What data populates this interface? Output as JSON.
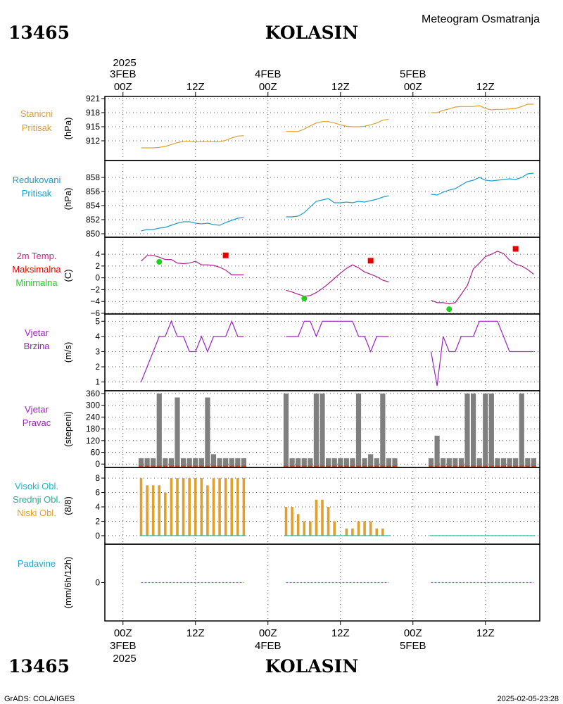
{
  "header": {
    "station_id": "13465",
    "station_name": "KOLASIN",
    "chart_title": "Meteogram Osmatranja",
    "year": "2025"
  },
  "footer": {
    "station_id": "13465",
    "station_name": "KOLASIN",
    "year": "2025",
    "credit": "GrADS: COLA/IGES",
    "timestamp": "2025-02-05-23:28"
  },
  "colors": {
    "pressure_station": "#e0a030",
    "pressure_reduced": "#1e9ec8",
    "temp": "#b0208c",
    "temp_max": "#e60000",
    "temp_min": "#1ed21e",
    "wind": "#a020c8",
    "bars": "#7f7f7f",
    "dir_base": "#c0502a",
    "cloud_low": "#e0a030",
    "cloud_mid": "#1eb496",
    "cloud_high": "#1eb4c8",
    "precip": "#1e9ec8",
    "precip_label": "#2aa0c8",
    "clouds_label_high": "#1eb4c8",
    "clouds_label_mid": "#1eb496",
    "clouds_label_low": "#e0a030",
    "dir_label": "#a020c8",
    "wind_label": "#a020c8",
    "temp_label": "#c82888",
    "maxlabel": "#e60000",
    "minlabel": "#1ed21e"
  },
  "chart_data": {
    "type": "line",
    "time_axis": {
      "top_days": [
        "3FEB",
        "4FEB",
        "5FEB"
      ],
      "top_hours": [
        "00Z",
        "12Z",
        "00Z",
        "12Z",
        "00Z",
        "12Z"
      ],
      "bottom_hours": [
        "00Z",
        "12Z",
        "00Z",
        "12Z",
        "00Z",
        "12Z"
      ],
      "bottom_days": [
        "3FEB",
        "4FEB",
        "5FEB"
      ],
      "range_hours": [
        -3,
        69
      ]
    },
    "panels": [
      {
        "id": "station_pressure",
        "labels": [
          "Stanicni",
          "Pritisak"
        ],
        "unit": "(hPa)",
        "ylim": [
          909,
          921
        ],
        "ticks": [
          "921",
          "918",
          "915",
          "912"
        ],
        "tick_values": [
          921,
          918,
          915,
          912
        ],
        "series": [
          {
            "hours": [
              3,
              4,
              5,
              6,
              7,
              8,
              9,
              10,
              11,
              12,
              13,
              14,
              15,
              16,
              17,
              18,
              19,
              20
            ],
            "values": [
              910.5,
              910.5,
              910.5,
              910.6,
              910.8,
              911.2,
              911.6,
              911.9,
              911.9,
              911.8,
              911.8,
              911.9,
              911.8,
              911.8,
              912.1,
              912.6,
              913.0,
              913.1
            ]
          },
          {
            "hours": [
              27,
              28,
              29,
              30,
              31,
              32,
              33,
              34,
              35,
              36,
              37,
              38,
              39,
              40,
              41,
              42,
              43,
              44
            ],
            "values": [
              914.0,
              914.0,
              914.0,
              914.5,
              915.2,
              915.8,
              916.1,
              916.1,
              915.8,
              915.4,
              915.1,
              915.0,
              915.0,
              915.1,
              915.4,
              915.8,
              916.4,
              916.6
            ]
          },
          {
            "hours": [
              51,
              52,
              53,
              54,
              55,
              56,
              57,
              58,
              59,
              60,
              61,
              62,
              63,
              64,
              65,
              66,
              67,
              68
            ],
            "values": [
              918.0,
              918.0,
              918.5,
              918.8,
              919.2,
              919.3,
              919.3,
              919.3,
              919.5,
              918.9,
              918.6,
              918.7,
              918.7,
              918.8,
              918.9,
              919.3,
              919.8,
              919.8
            ]
          }
        ]
      },
      {
        "id": "reduced_pressure",
        "labels": [
          "Redukovani",
          "Pritisak"
        ],
        "unit": "(hPa)",
        "ylim": [
          849.8,
          858.9
        ],
        "ticks": [
          "858",
          "856",
          "854",
          "852",
          "850"
        ],
        "tick_values": [
          858,
          856,
          854,
          852,
          850
        ],
        "series": [
          {
            "hours": [
              3,
              4,
              5,
              6,
              7,
              8,
              9,
              10,
              11,
              12,
              13,
              14,
              15,
              16,
              17,
              18,
              19,
              20
            ],
            "values": [
              850.4,
              850.6,
              850.6,
              850.8,
              850.9,
              851.2,
              851.5,
              851.7,
              851.7,
              851.5,
              851.4,
              851.5,
              851.3,
              851.2,
              851.6,
              851.9,
              852.2,
              852.3
            ]
          },
          {
            "hours": [
              27,
              28,
              29,
              30,
              31,
              32,
              33,
              34,
              35,
              36,
              37,
              38,
              39,
              40,
              41,
              42,
              43,
              44
            ],
            "values": [
              852.4,
              852.4,
              852.5,
              853.0,
              853.8,
              854.6,
              854.8,
              855.0,
              854.4,
              854.4,
              854.5,
              854.4,
              854.6,
              854.5,
              854.7,
              854.9,
              855.2,
              855.4
            ]
          },
          {
            "hours": [
              51,
              52,
              53,
              54,
              55,
              56,
              57,
              58,
              59,
              60,
              61,
              62,
              63,
              64,
              65,
              66,
              67,
              68
            ],
            "values": [
              855.6,
              855.5,
              855.9,
              856.2,
              856.4,
              856.9,
              857.4,
              857.6,
              858.0,
              857.6,
              857.5,
              857.6,
              857.7,
              857.8,
              857.7,
              858.0,
              858.5,
              858.6
            ]
          }
        ]
      },
      {
        "id": "temperature",
        "labels": [
          "2m Temp.",
          "Maksimalna",
          "Minimalna"
        ],
        "unit": "(C)",
        "ylim": [
          -6,
          5.2
        ],
        "ticks": [
          "4",
          "2",
          "0",
          "−2",
          "−4",
          "−6"
        ],
        "tick_values": [
          4,
          2,
          0,
          -2,
          -4,
          -6
        ],
        "series": [
          {
            "hours": [
              3,
              4,
              5,
              6,
              7,
              8,
              9,
              10,
              11,
              12,
              13,
              14,
              15,
              16,
              17,
              18,
              19,
              20
            ],
            "values": [
              2.8,
              3.8,
              3.8,
              3.5,
              3.1,
              3.1,
              2.5,
              2.4,
              2.5,
              2.8,
              2.2,
              2.2,
              2.1,
              1.8,
              1.3,
              0.5,
              0.5,
              0.5
            ]
          },
          {
            "hours": [
              27,
              28,
              29,
              30,
              31,
              32,
              33,
              34,
              35,
              36,
              37,
              38,
              39,
              40,
              41,
              42,
              43,
              44
            ],
            "values": [
              -2.1,
              -2.4,
              -2.8,
              -3.1,
              -3.0,
              -2.5,
              -1.8,
              -1.0,
              -0.1,
              0.8,
              1.6,
              2.2,
              1.7,
              1.0,
              0.6,
              0.2,
              -0.4,
              -0.7
            ]
          },
          {
            "hours": [
              51,
              52,
              53,
              54,
              55,
              56,
              57,
              58,
              59,
              60,
              61,
              62,
              63,
              64,
              65,
              66,
              67,
              68
            ],
            "values": [
              -3.8,
              -4.2,
              -4.2,
              -4.4,
              -4.2,
              -2.8,
              -1.3,
              1.5,
              2.5,
              3.6,
              4.0,
              4.5,
              4.1,
              3.0,
              2.3,
              2.0,
              1.4,
              0.6
            ]
          }
        ],
        "max_points": {
          "hours": [
            17,
            41,
            65
          ],
          "values": [
            3.8,
            2.9,
            4.9
          ]
        },
        "min_points": {
          "hours": [
            6,
            30,
            54
          ],
          "values": [
            2.7,
            -3.5,
            -5.3
          ]
        }
      },
      {
        "id": "wind_speed",
        "labels": [
          "Vjetar",
          "Brzina"
        ],
        "unit": "(m/s)",
        "ylim": [
          0.75,
          5.2
        ],
        "ticks": [
          "5",
          "4",
          "3",
          "2",
          "1"
        ],
        "tick_values": [
          5,
          4,
          3,
          2,
          1
        ],
        "series": [
          {
            "hours": [
              3,
              4,
              5,
              6,
              7,
              8,
              9,
              10,
              11,
              12,
              13,
              14,
              15,
              16,
              17,
              18,
              19,
              20
            ],
            "values": [
              1,
              2,
              3,
              4,
              4,
              5,
              4,
              4,
              3,
              3,
              4,
              3,
              4,
              4,
              4,
              5,
              4,
              4
            ]
          },
          {
            "hours": [
              27,
              28,
              29,
              30,
              31,
              32,
              33,
              34,
              35,
              36,
              37,
              38,
              39,
              40,
              41,
              42,
              43,
              44
            ],
            "values": [
              4,
              4,
              4,
              5,
              5,
              4,
              5,
              5,
              5,
              5,
              5,
              5,
              4,
              4,
              3,
              4,
              4,
              4
            ]
          },
          {
            "hours": [
              51,
              52,
              53,
              54,
              55,
              56,
              57,
              58,
              59,
              60,
              61,
              62,
              63,
              64,
              65,
              66,
              67,
              68
            ],
            "values": [
              3,
              0.75,
              4,
              3,
              3,
              4,
              4,
              4,
              5,
              5,
              5,
              5,
              4,
              3,
              3,
              3,
              3,
              3
            ]
          }
        ]
      },
      {
        "id": "wind_direction",
        "labels": [
          "Vjetar",
          "Pravac"
        ],
        "unit": "(stepeni)",
        "ylim": [
          -10,
          360
        ],
        "ticks": [
          "360",
          "300",
          "240",
          "180",
          "120",
          "60",
          "0"
        ],
        "tick_values": [
          360,
          300,
          240,
          180,
          120,
          60,
          0
        ],
        "series": [
          {
            "hours": [
              3,
              4,
              5,
              6,
              7,
              8,
              9,
              10,
              11,
              12,
              13,
              14,
              15,
              16,
              17,
              18,
              19,
              20
            ],
            "values": [
              30,
              30,
              30,
              360,
              30,
              30,
              340,
              30,
              30,
              30,
              30,
              340,
              50,
              30,
              30,
              30,
              30,
              30
            ]
          },
          {
            "hours": [
              27,
              28,
              29,
              30,
              31,
              32,
              33,
              34,
              35,
              36,
              37,
              38,
              39,
              40,
              41,
              42,
              43,
              44,
              45
            ],
            "values": [
              360,
              30,
              30,
              30,
              30,
              360,
              360,
              30,
              30,
              30,
              30,
              30,
              360,
              30,
              50,
              30,
              360,
              30,
              30
            ]
          },
          {
            "hours": [
              51,
              52,
              53,
              54,
              55,
              56,
              57,
              58,
              59,
              60,
              61,
              62,
              63,
              64,
              65,
              66,
              67,
              68
            ],
            "values": [
              30,
              145,
              30,
              30,
              30,
              30,
              360,
              360,
              30,
              360,
              360,
              30,
              30,
              30,
              30,
              360,
              30,
              30
            ]
          }
        ]
      },
      {
        "id": "clouds",
        "labels": [
          "Visoki Obl.",
          "Srednji Obl.",
          "Niski Obl."
        ],
        "unit": "(8/8)",
        "ylim": [
          -0.3,
          8.4
        ],
        "ticks": [
          "8",
          "6",
          "4",
          "2",
          "0"
        ],
        "tick_values": [
          8,
          6,
          4,
          2,
          0
        ],
        "series": [
          {
            "hours": [
              3,
              4,
              5,
              6,
              7,
              8,
              9,
              10,
              11,
              12,
              13,
              14,
              15,
              16,
              17,
              18,
              19,
              20
            ],
            "values": [
              8,
              7,
              7,
              7,
              6,
              8,
              8,
              8,
              8,
              8,
              8,
              7,
              8,
              8,
              8,
              8,
              8,
              8
            ]
          },
          {
            "hours": [
              27,
              28,
              29,
              30,
              31,
              32,
              33,
              34,
              35,
              36,
              37,
              38,
              39,
              40,
              41,
              42,
              43,
              44
            ],
            "values": [
              4,
              4,
              3,
              2,
              2,
              5,
              5,
              4,
              2,
              0,
              1,
              1,
              2,
              2,
              2,
              1,
              1,
              0
            ]
          },
          {
            "hours": [
              51,
              52,
              53,
              54,
              55,
              56,
              57,
              58,
              59,
              60,
              61,
              62,
              63,
              64,
              65,
              66,
              67,
              68
            ],
            "values": [
              0,
              0,
              0,
              0,
              0,
              0,
              0,
              0,
              0,
              0,
              0,
              0,
              0,
              0,
              0,
              0,
              0,
              0
            ]
          }
        ]
      },
      {
        "id": "precipitation",
        "labels": [
          "Padavine"
        ],
        "unit": "(mm/6h/12h)",
        "ylim": [
          -1,
          1
        ],
        "ticks": [
          "0"
        ],
        "tick_values": [
          0
        ],
        "series": [
          {
            "hours": [
              3,
              20
            ],
            "values": [
              0,
              0
            ]
          },
          {
            "hours": [
              27,
              44
            ],
            "values": [
              0,
              0
            ]
          },
          {
            "hours": [
              51,
              68
            ],
            "values": [
              0,
              0
            ]
          }
        ]
      }
    ]
  }
}
